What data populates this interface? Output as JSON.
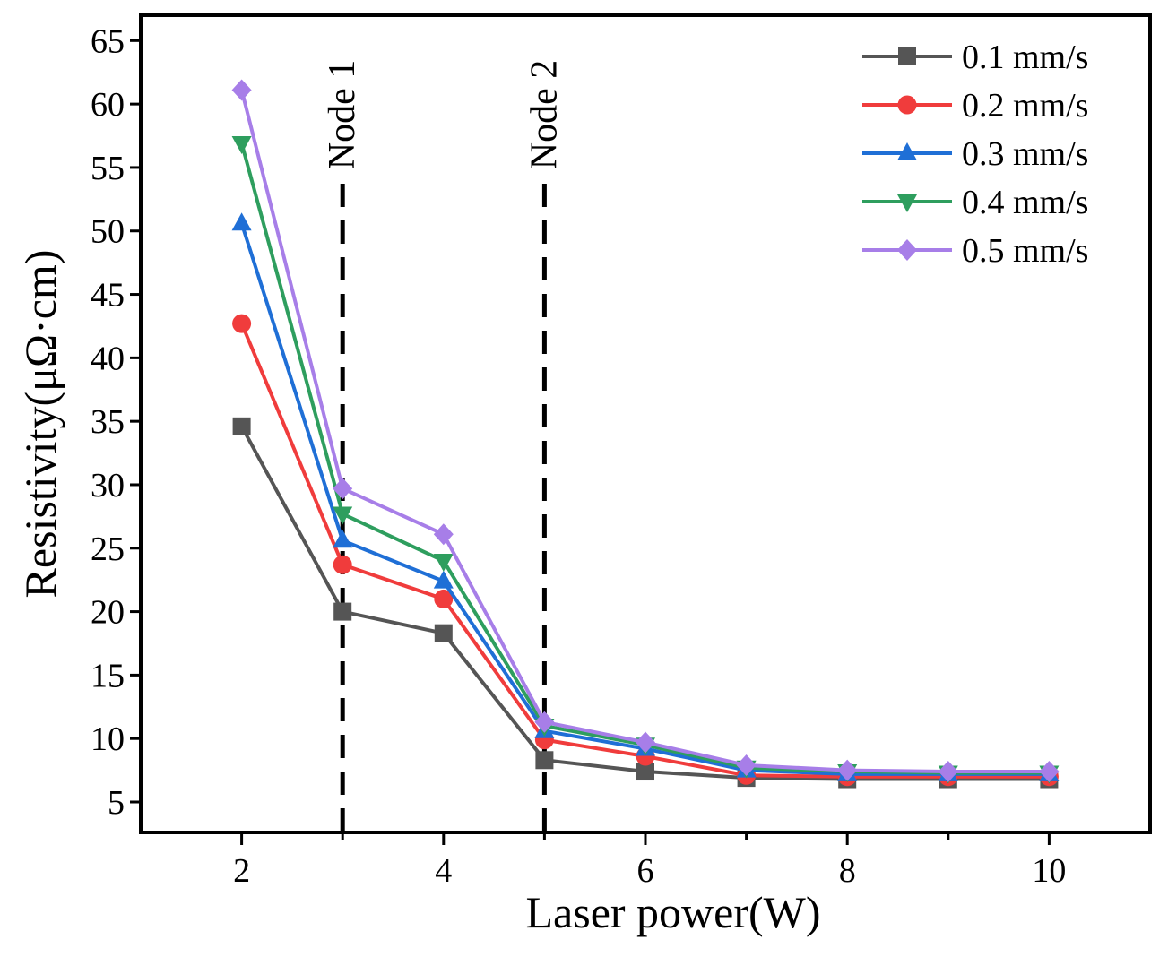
{
  "chart_data": {
    "type": "line",
    "title": "",
    "xlabel": "Laser power(W)",
    "ylabel": "Resistivity(μΩ·cm)",
    "x": [
      2,
      3,
      4,
      5,
      6,
      7,
      8,
      9,
      10
    ],
    "xlim": [
      1,
      11
    ],
    "ylim": [
      2.6,
      67
    ],
    "xticks": [
      2,
      4,
      6,
      8,
      10
    ],
    "yticks": [
      5,
      10,
      15,
      20,
      25,
      30,
      35,
      40,
      45,
      50,
      55,
      60,
      65
    ],
    "grid": false,
    "legend_position": "top-right",
    "series": [
      {
        "name": "0.1 mm/s",
        "color": "#555555",
        "marker": "square",
        "values": [
          34.6,
          20.0,
          18.3,
          8.3,
          7.4,
          6.9,
          6.8,
          6.8,
          6.8
        ]
      },
      {
        "name": "0.2 mm/s",
        "color": "#f03c3c",
        "marker": "circle",
        "values": [
          42.7,
          23.7,
          21.0,
          9.9,
          8.6,
          7.1,
          7.0,
          7.0,
          7.0
        ]
      },
      {
        "name": "0.3 mm/s",
        "color": "#1f6fd6",
        "marker": "triangle-up",
        "values": [
          50.6,
          25.6,
          22.4,
          10.6,
          9.2,
          7.5,
          7.2,
          7.2,
          7.2
        ]
      },
      {
        "name": "0.4 mm/s",
        "color": "#2e9e5e",
        "marker": "triangle-down",
        "values": [
          56.9,
          27.7,
          24.0,
          11.0,
          9.5,
          7.7,
          7.4,
          7.3,
          7.3
        ]
      },
      {
        "name": "0.5 mm/s",
        "color": "#a77ee8",
        "marker": "diamond",
        "values": [
          61.1,
          29.7,
          26.1,
          11.3,
          9.7,
          7.9,
          7.5,
          7.4,
          7.4
        ]
      }
    ],
    "reference_lines": [
      {
        "x": 3,
        "label": "Node 1",
        "style": "dashed"
      },
      {
        "x": 5,
        "label": "Node 2",
        "style": "dashed"
      }
    ]
  }
}
